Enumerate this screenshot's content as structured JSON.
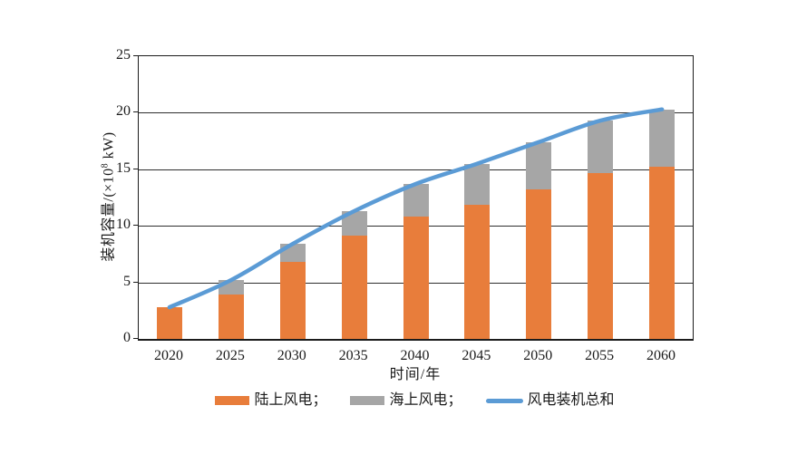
{
  "chart_data": {
    "type": "bar",
    "stacked": true,
    "title": "",
    "xlabel": "时间/年",
    "ylabel": "装机容量/(×10⁸ kW)",
    "ylabel_parts": {
      "prefix": "装机容量/(×10",
      "sup": "8",
      "suffix": " kW)"
    },
    "categories": [
      "2020",
      "2025",
      "2030",
      "2035",
      "2040",
      "2045",
      "2050",
      "2055",
      "2060"
    ],
    "series": [
      {
        "key": "onshore",
        "name": "陆上风电",
        "type": "bar",
        "color": "#E87D3B",
        "values": [
          2.8,
          3.9,
          6.8,
          9.1,
          10.8,
          11.9,
          13.2,
          14.7,
          15.2
        ]
      },
      {
        "key": "offshore",
        "name": "海上风电",
        "type": "bar",
        "color": "#A6A6A6",
        "values": [
          0,
          1.3,
          1.6,
          2.2,
          2.9,
          3.6,
          4.2,
          4.6,
          5.1
        ]
      },
      {
        "key": "total",
        "name": "风电装机总和",
        "type": "line",
        "color": "#5B9BD5",
        "values": [
          2.8,
          5.2,
          8.4,
          11.3,
          13.7,
          15.5,
          17.4,
          19.3,
          20.3
        ]
      }
    ],
    "ylim": [
      0,
      25
    ],
    "yticks": [
      0,
      5,
      10,
      15,
      20,
      25
    ],
    "grid": true,
    "legend_position": "bottom",
    "line_smoothed": true
  },
  "legend": {
    "items": [
      {
        "label": "陆上风电；",
        "swatch": "rect",
        "series_index": 0
      },
      {
        "label": "海上风电；",
        "swatch": "rect",
        "series_index": 1
      },
      {
        "label": "风电装机总和",
        "swatch": "line",
        "series_index": 2
      }
    ]
  }
}
